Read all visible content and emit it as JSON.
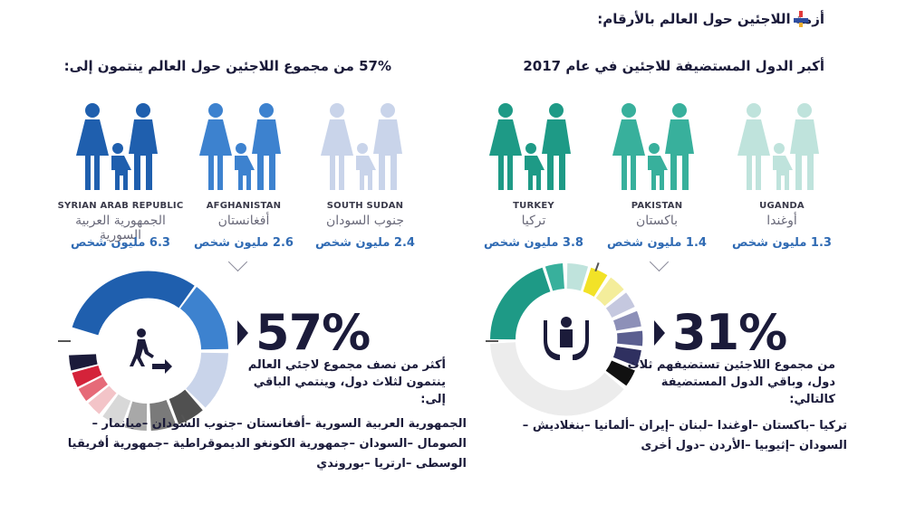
{
  "title": "أزمة اللاجئين حول العالم بالأرقام:",
  "right_section": {
    "heading": "أكبر الدول المستضيفة للاجئين في عام 2017",
    "countries": [
      {
        "en": "TURKEY",
        "ar": "تركيا",
        "value": "3.8 مليون شخص",
        "color": "#1e9a86"
      },
      {
        "en": "PAKISTAN",
        "ar": "باكستان",
        "value": "1.4 مليون شخص",
        "color": "#38b09c"
      },
      {
        "en": "UGANDA",
        "ar": "أوغندا",
        "value": "1.3 مليون شخص",
        "color": "#bfe3dc"
      }
    ],
    "big_percent": "31%",
    "description": "من مجموع اللاجئين تستضيفهم ثلاث دول، وباقي الدول المستضيفة كالتالي:",
    "list": "تركيا –باكستان –اوغندا –لبنان –إيران –ألمانيا –بنغلاديش – السودان –إثيوبيا –الأردن –دول أخرى"
  },
  "left_section": {
    "heading": "57% من مجموع اللاجئين حول العالم ينتمون إلى:",
    "countries": [
      {
        "en": "SYRIAN ARAB REPUBLIC",
        "ar": "الجمهورية العربية السورية",
        "value": "6.3 مليون شخص",
        "color": "#1f5fae"
      },
      {
        "en": "AFGHANISTAN",
        "ar": "أفغانستان",
        "value": "2.6 مليون شخص",
        "color": "#3d82cf"
      },
      {
        "en": "SOUTH SUDAN",
        "ar": "جنوب السودان",
        "value": "2.4 مليون شخص",
        "color": "#c9d4ea"
      }
    ],
    "big_percent": "57%",
    "description": "أكثر من نصف مجموع لاجئي العالم ينتمون لثلاث دول، وينتمي الباقي إلى:",
    "list": "الجمهورية العربية السورية –أفغانستان –جنوب السودان –ميانمار – الصومال –السودان –جمهورية الكونغو الديموقراطية –جمهورية أفريقيا الوسطى –ارتريا –بوروندي"
  },
  "icons": {
    "title": "infographic-icon",
    "left_donut_center": "walking-person-arrow-icon",
    "right_donut_center": "hands-protecting-person-icon"
  }
}
